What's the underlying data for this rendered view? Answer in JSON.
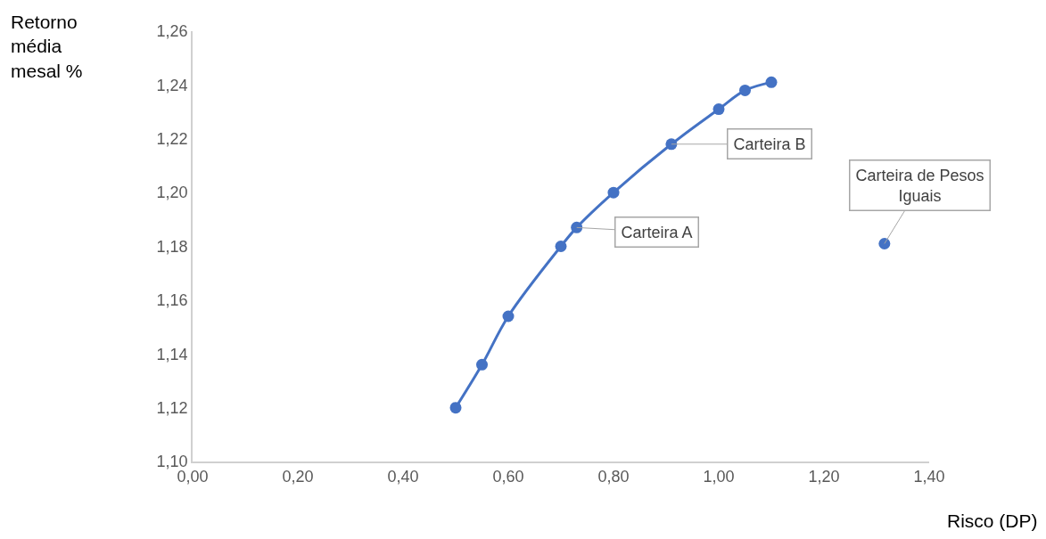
{
  "chart_data": {
    "type": "line",
    "xlabel": "Risco (DP)",
    "ylabel": "Retorno média mesal %",
    "series": [
      {
        "color": "#4472c4",
        "x": [
          0.5,
          0.55,
          0.6,
          0.7,
          0.73,
          0.8,
          0.91,
          1.0,
          1.05,
          1.1
        ],
        "values": [
          1.12,
          1.136,
          1.154,
          1.18,
          1.187,
          1.2,
          1.218,
          1.231,
          1.238,
          1.241
        ]
      },
      {
        "type": "scatter",
        "color": "#4472c4",
        "x": [
          1.315
        ],
        "values": [
          1.181
        ]
      }
    ],
    "xlim": [
      0,
      1.4
    ],
    "ylim": [
      1.1,
      1.26
    ],
    "xticks": [
      {
        "value": 0,
        "label": "0,00"
      },
      {
        "value": 0.2,
        "label": "0,20"
      },
      {
        "value": 0.4,
        "label": "0,40"
      },
      {
        "value": 0.6,
        "label": "0,60"
      },
      {
        "value": 0.8,
        "label": "0,80"
      },
      {
        "value": 1.0,
        "label": "1,00"
      },
      {
        "value": 1.2,
        "label": "1,20"
      },
      {
        "value": 1.4,
        "label": "1,40"
      }
    ],
    "yticks": [
      {
        "value": 1.1,
        "label": "1,10"
      },
      {
        "value": 1.12,
        "label": "1,12"
      },
      {
        "value": 1.14,
        "label": "1,14"
      },
      {
        "value": 1.16,
        "label": "1,16"
      },
      {
        "value": 1.18,
        "label": "1,18"
      },
      {
        "value": 1.2,
        "label": "1,20"
      },
      {
        "value": 1.22,
        "label": "1,22"
      },
      {
        "value": 1.24,
        "label": "1,24"
      },
      {
        "value": 1.26,
        "label": "1,26"
      }
    ],
    "annotations": [
      {
        "text": "Carteira A",
        "x": 0.73,
        "y": 1.187
      },
      {
        "text": "Carteira B",
        "x": 0.91,
        "y": 1.218
      },
      {
        "text": "Carteira de Pesos Iguais",
        "x": 1.315,
        "y": 1.181
      }
    ],
    "marker": "circle"
  }
}
